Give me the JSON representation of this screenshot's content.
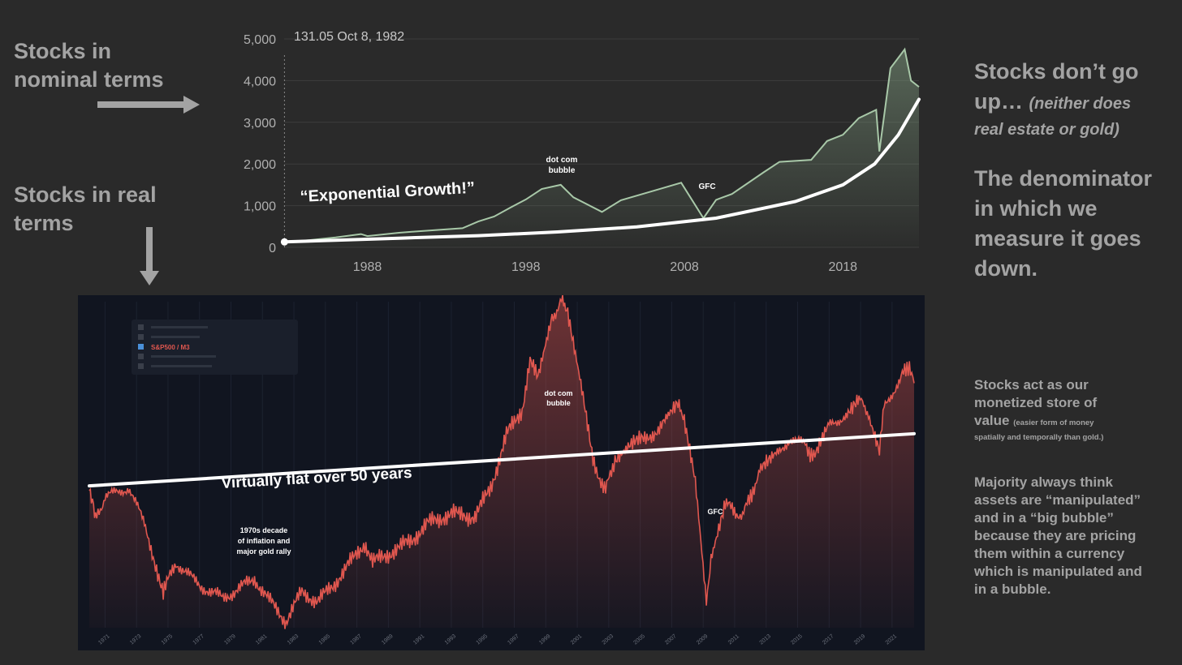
{
  "slide": {
    "left_top_label": [
      "Stocks in",
      "nominal terms"
    ],
    "left_bottom_label": [
      "Stocks in real",
      "terms"
    ],
    "right_heading_1": [
      "Stocks don’t go",
      "up…"
    ],
    "right_heading_1_italic": [
      "(neither does",
      "real estate or gold)"
    ],
    "right_heading_2": [
      "The denominator",
      "in which we",
      "measure it goes",
      "down."
    ],
    "right_text_1": [
      "Stocks act as our",
      "monetized store of",
      "value"
    ],
    "right_text_1_small": [
      "(easier form of money",
      "spatially and temporally than gold.)"
    ],
    "right_text_2": [
      "Majority always think",
      "assets are “manipulated”",
      "and in a “big bubble”",
      "because they are pricing",
      "them within a currency",
      "which is manipulated and",
      "in a bubble."
    ]
  },
  "colors": {
    "background": "#2a2a2a",
    "nominal_line": "#a8c8a8",
    "real_line": "#e0574f",
    "trend_line": "#ffffff",
    "text": "#a3a3a3"
  },
  "icons": [
    "arrow-right-icon",
    "arrow-down-icon"
  ],
  "chart_data": [
    {
      "type": "area",
      "tooltip": "131.05  Oct 8, 1982",
      "yticks": [
        "5,000",
        "4,000",
        "3,000",
        "2,000",
        "1,000",
        "0"
      ],
      "xticks": [
        "1988",
        "1998",
        "2008",
        "2018"
      ],
      "xlim": [
        1982.75,
        2022.8
      ],
      "ylim": [
        0,
        5000
      ],
      "grid": true,
      "annotations": [
        {
          "text": "“Exponential Growth!”"
        },
        {
          "text": [
            "dot com",
            "bubble"
          ]
        },
        {
          "text": "GFC"
        }
      ],
      "series": [
        {
          "x": [
            1982.77,
            1984,
            1986,
            1987.6,
            1988,
            1990,
            1991,
            1994,
            1995,
            1996,
            1997,
            1998,
            1999,
            2000.2,
            2001,
            2002.8,
            2004,
            2006,
            2007.8,
            2009.2,
            2010,
            2011,
            2013,
            2014,
            2016,
            2017,
            2018,
            2019,
            2020.1,
            2020.3,
            2021,
            2021.9,
            2022.3,
            2022.8
          ],
          "y": [
            131,
            160,
            240,
            320,
            270,
            350,
            380,
            460,
            620,
            740,
            950,
            1150,
            1400,
            1500,
            1200,
            850,
            1130,
            1350,
            1550,
            700,
            1140,
            1280,
            1800,
            2050,
            2100,
            2550,
            2700,
            3100,
            3300,
            2300,
            4300,
            4750,
            4000,
            3850
          ]
        },
        {
          "x": [
            1982.77,
            1990,
            1995,
            2000,
            2005,
            2010,
            2015,
            2018,
            2020,
            2021.5,
            2022.8
          ],
          "y": [
            131,
            220,
            280,
            370,
            490,
            700,
            1100,
            1500,
            2000,
            2700,
            3550
          ]
        }
      ]
    },
    {
      "type": "line",
      "legend": [
        "S&P500 / M3"
      ],
      "xticks": [
        "1971",
        "1973",
        "1975",
        "1977",
        "1979",
        "1981",
        "1983",
        "1985",
        "1987",
        "1989",
        "1991",
        "1993",
        "1995",
        "1997",
        "1999",
        "2001",
        "2003",
        "2005",
        "2007",
        "2009",
        "2011",
        "2013",
        "2015",
        "2017",
        "2019",
        "2021"
      ],
      "xlim": [
        1970,
        2022.4
      ],
      "ylim": [
        0,
        10
      ],
      "grid": true,
      "annotations": [
        {
          "text": "Virtually flat over 50 years"
        },
        {
          "text": [
            "dot com",
            "bubble"
          ]
        },
        {
          "text": "GFC"
        },
        {
          "text": [
            "1970s decade",
            "of inflation and",
            "major gold rally"
          ]
        }
      ],
      "series": [
        {
          "x": [
            1970,
            1970.4,
            1971,
            1972.5,
            1973.5,
            1974.7,
            1975.5,
            1977,
            1978.5,
            1980.5,
            1981.5,
            1982.5,
            1983.5,
            1984.5,
            1985.5,
            1987.5,
            1988,
            1989.5,
            1990.5,
            1991.5,
            1993,
            1994.5,
            1995.5,
            1996.5,
            1997.5,
            1998,
            1998.5,
            1999.4,
            2000,
            2000.4,
            2001.3,
            2002,
            2002.8,
            2003.4,
            2004.3,
            2005.5,
            2006.5,
            2007.4,
            2007.8,
            2008.5,
            2009.2,
            2009.5,
            2010.4,
            2011.5,
            2012.6,
            2013.5,
            2014.5,
            2015.5,
            2016.1,
            2017,
            2018,
            2018.9,
            2019.5,
            2020.2,
            2020.5,
            2021.5,
            2022.1,
            2022.4
          ],
          "y": [
            4.2,
            3.3,
            4.0,
            4.3,
            3.2,
            1.1,
            2.0,
            1.3,
            0.9,
            1.5,
            0.8,
            0.2,
            1.1,
            0.8,
            1.3,
            2.6,
            2.0,
            2.4,
            2.7,
            3.2,
            3.5,
            3.4,
            4.3,
            5.9,
            6.7,
            8.2,
            7.6,
            9.5,
            10.0,
            9.6,
            7.2,
            5.1,
            4.2,
            5.2,
            5.6,
            5.8,
            6.3,
            6.8,
            6.3,
            4.4,
            0.8,
            2.2,
            3.8,
            3.4,
            4.8,
            5.2,
            5.8,
            5.6,
            5.2,
            6.2,
            6.5,
            7.0,
            6.6,
            5.4,
            6.8,
            7.6,
            8.1,
            7.5
          ]
        },
        {
          "x": [
            1970,
            2022.4
          ],
          "y": [
            4.35,
            5.95
          ]
        }
      ]
    }
  ]
}
